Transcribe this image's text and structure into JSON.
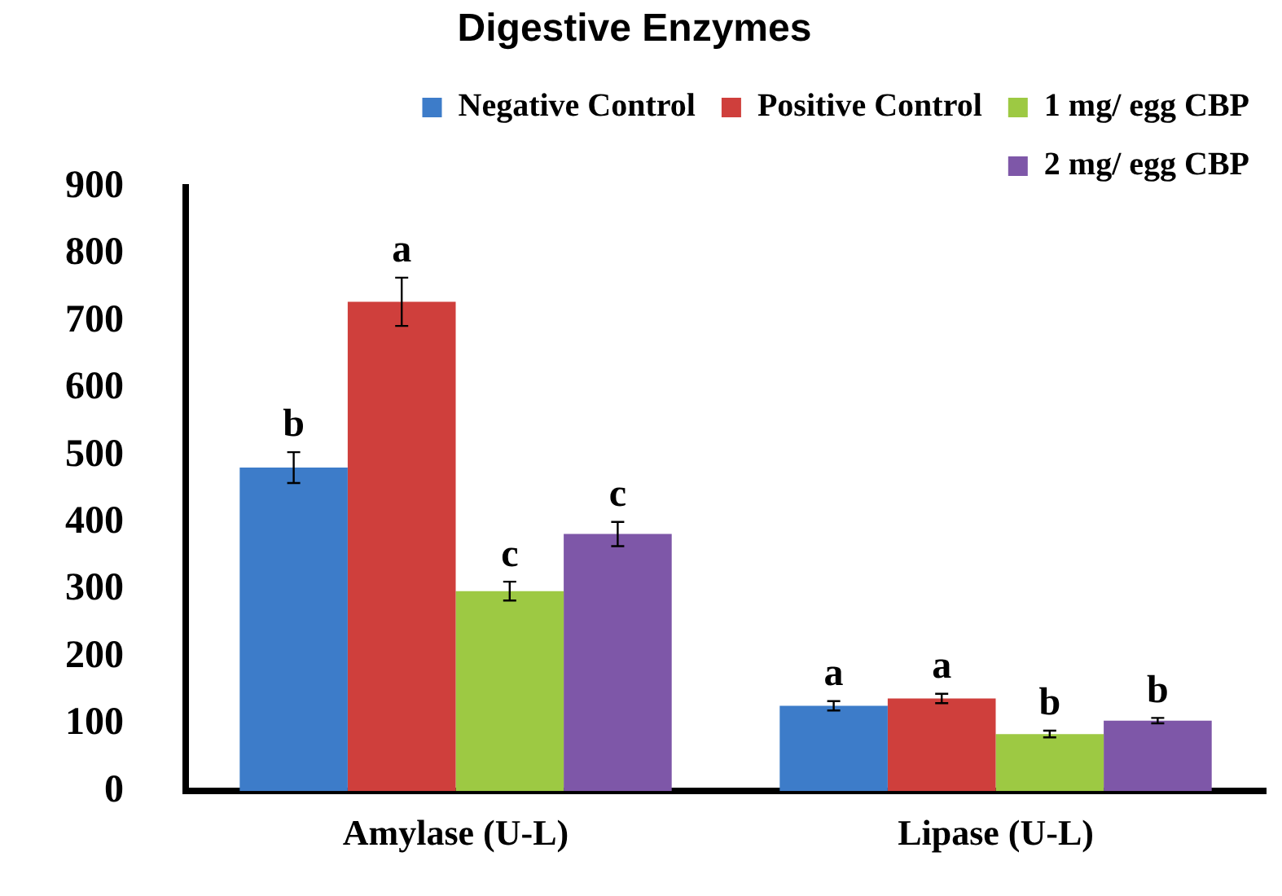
{
  "chart_data": {
    "type": "bar",
    "title": "Digestive Enzymes",
    "categories": [
      "Amylase (U-L)",
      "Lipase (U-L)"
    ],
    "series": [
      {
        "name": "Negative Control",
        "color": "#3d7cc9",
        "values": [
          482,
          127
        ],
        "errors": [
          23,
          7
        ],
        "value_labels": [
          "b",
          "a"
        ]
      },
      {
        "name": "Positive Control",
        "color": "#cf3f3c",
        "values": [
          729,
          138
        ],
        "errors": [
          36,
          7
        ],
        "value_labels": [
          "a",
          "a"
        ]
      },
      {
        "name": "1 mg/ egg CBP",
        "color": "#9dc943",
        "values": [
          298,
          85
        ],
        "errors": [
          14,
          5
        ],
        "value_labels": [
          "c",
          "b"
        ]
      },
      {
        "name": "2 mg/ egg CBP",
        "color": "#7e57a8",
        "values": [
          383,
          105
        ],
        "errors": [
          18,
          4
        ],
        "value_labels": [
          "c",
          "b"
        ]
      }
    ],
    "ylim": [
      0,
      900
    ],
    "yticks": [
      0,
      100,
      200,
      300,
      400,
      500,
      600,
      700,
      800,
      900
    ],
    "grid": false,
    "legend": "top right"
  }
}
